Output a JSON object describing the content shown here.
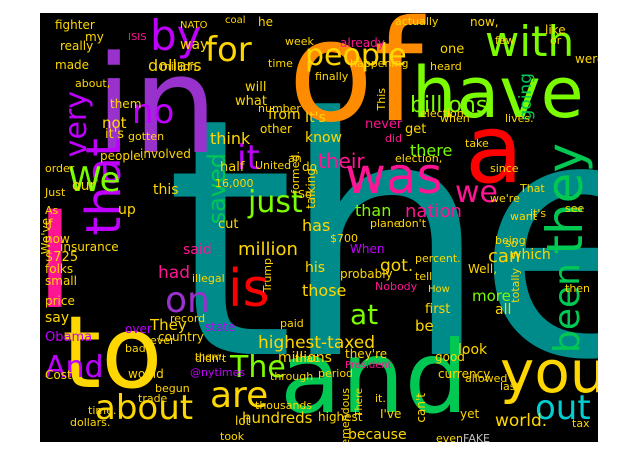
{
  "background": "#000000",
  "colors": {
    "teal": "#008b8b",
    "orange": "#ff8c00",
    "purple": "#9932cc",
    "red": "#ff0000",
    "pink": "#ff1493",
    "lime": "#7cfc00",
    "green": "#00c853",
    "yellow": "#ffd700",
    "violet": "#c000ff",
    "cyan": "#00ced1",
    "grey": "#c0c0c0",
    "brown": "#b8860b"
  },
  "words": [
    {
      "text": "the",
      "color": "teal"
    },
    {
      "text": "of",
      "color": "orange"
    },
    {
      "text": "in",
      "color": "purple"
    },
    {
      "text": "and",
      "color": "green"
    },
    {
      "text": "to",
      "color": "yellow"
    },
    {
      "text": "I",
      "color": "pink"
    },
    {
      "text": "a",
      "color": "red"
    },
    {
      "text": "have",
      "color": "lime"
    },
    {
      "text": "was",
      "color": "pink"
    },
    {
      "text": "is",
      "color": "red"
    },
    {
      "text": "you",
      "color": "yellow"
    },
    {
      "text": "that",
      "color": "violet"
    },
    {
      "text": "they",
      "color": "green"
    },
    {
      "text": "with",
      "color": "lime"
    },
    {
      "text": "for",
      "color": "yellow"
    },
    {
      "text": "by",
      "color": "violet"
    },
    {
      "text": "people",
      "color": "yellow"
    },
    {
      "text": "We",
      "color": "lime"
    },
    {
      "text": "we",
      "color": "pink"
    },
    {
      "text": "about",
      "color": "yellow"
    },
    {
      "text": "are",
      "color": "yellow"
    },
    {
      "text": "out",
      "color": "cyan"
    },
    {
      "text": "The",
      "color": "lime"
    },
    {
      "text": "been",
      "color": "green"
    },
    {
      "text": "on",
      "color": "purple"
    },
    {
      "text": "And",
      "color": "violet"
    },
    {
      "text": "just",
      "color": "lime"
    },
    {
      "text": "it",
      "color": "violet"
    },
    {
      "text": "no",
      "color": "violet"
    },
    {
      "text": "very",
      "color": "violet"
    },
    {
      "text": "saved",
      "color": "green"
    },
    {
      "text": "billions",
      "color": "lime"
    },
    {
      "text": "highest-taxed",
      "color": "yellow"
    },
    {
      "text": "million",
      "color": "yellow"
    },
    {
      "text": "at",
      "color": "lime"
    },
    {
      "text": "nation",
      "color": "pink"
    },
    {
      "text": "their",
      "color": "pink"
    },
    {
      "text": "world.",
      "color": "yellow"
    },
    {
      "text": "because",
      "color": "yellow"
    },
    {
      "text": "hundreds",
      "color": "yellow"
    },
    {
      "text": "got.",
      "color": "yellow"
    },
    {
      "text": "more",
      "color": "lime"
    },
    {
      "text": "had",
      "color": "pink"
    },
    {
      "text": "can",
      "color": "yellow"
    },
    {
      "text": "dollars",
      "color": "yellow"
    },
    {
      "text": "think",
      "color": "yellow"
    },
    {
      "text": "not",
      "color": "yellow"
    },
    {
      "text": "going",
      "color": "green"
    },
    {
      "text": "those",
      "color": "yellow"
    },
    {
      "text": "which",
      "color": "yellow"
    },
    {
      "text": "They",
      "color": "yellow"
    },
    {
      "text": "there",
      "color": "lime"
    },
    {
      "text": "than",
      "color": "lime"
    },
    {
      "text": "has",
      "color": "yellow"
    },
    {
      "text": "said",
      "color": "pink"
    },
    {
      "text": "millions",
      "color": "yellow"
    },
    {
      "text": "from",
      "color": "yellow"
    },
    {
      "text": "way",
      "color": "yellow"
    },
    {
      "text": "this",
      "color": "yellow"
    },
    {
      "text": "know",
      "color": "yellow"
    },
    {
      "text": "It's",
      "color": "yellow"
    },
    {
      "text": "say",
      "color": "yellow"
    },
    {
      "text": "look",
      "color": "yellow"
    },
    {
      "text": "up",
      "color": "yellow"
    },
    {
      "text": "our",
      "color": "yellow"
    },
    {
      "text": "really",
      "color": "yellow"
    },
    {
      "text": "never",
      "color": "pink"
    },
    {
      "text": "one",
      "color": "yellow"
    },
    {
      "text": "get",
      "color": "yellow"
    },
    {
      "text": "be",
      "color": "yellow"
    },
    {
      "text": "first",
      "color": "yellow"
    },
    {
      "text": "all",
      "color": "yellow"
    },
    {
      "text": "what",
      "color": "yellow"
    },
    {
      "text": "cut",
      "color": "yellow"
    },
    {
      "text": "half",
      "color": "yellow"
    },
    {
      "text": "his",
      "color": "yellow"
    },
    {
      "text": "will",
      "color": "yellow"
    },
    {
      "text": "my",
      "color": "yellow"
    },
    {
      "text": "fighter",
      "color": "yellow"
    },
    {
      "text": "he",
      "color": "yellow"
    },
    {
      "text": "like",
      "color": "yellow"
    },
    {
      "text": "were",
      "color": "yellow"
    },
    {
      "text": "now,",
      "color": "yellow"
    },
    {
      "text": "heard",
      "color": "yellow"
    },
    {
      "text": "already",
      "color": "pink"
    },
    {
      "text": "Obama",
      "color": "violet"
    },
    {
      "text": "over",
      "color": "violet"
    },
    {
      "text": "country",
      "color": "yellow"
    },
    {
      "text": "price",
      "color": "yellow"
    },
    {
      "text": "record",
      "color": "yellow"
    },
    {
      "text": "small",
      "color": "yellow"
    },
    {
      "text": "insurance",
      "color": "yellow"
    },
    {
      "text": "if",
      "color": "yellow"
    },
    {
      "text": "now",
      "color": "yellow"
    },
    {
      "text": "$725",
      "color": "yellow"
    },
    {
      "text": "folks",
      "color": "yellow"
    },
    {
      "text": "Just",
      "color": "yellow"
    },
    {
      "text": "people.",
      "color": "yellow"
    },
    {
      "text": "involved",
      "color": "yellow"
    },
    {
      "text": "order",
      "color": "yellow"
    },
    {
      "text": "it's",
      "color": "yellow"
    },
    {
      "text": "them",
      "color": "yellow"
    },
    {
      "text": "gotten",
      "color": "yellow"
    },
    {
      "text": "other",
      "color": "yellow"
    },
    {
      "text": "number",
      "color": "yellow"
    },
    {
      "text": "When",
      "color": "violet"
    },
    {
      "text": "would",
      "color": "yellow"
    },
    {
      "text": "trade",
      "color": "yellow"
    },
    {
      "text": "took",
      "color": "yellow"
    },
    {
      "text": "lot",
      "color": "yellow"
    },
    {
      "text": "highest",
      "color": "yellow"
    },
    {
      "text": "period",
      "color": "yellow"
    },
    {
      "text": "thousands",
      "color": "yellow"
    },
    {
      "text": "state",
      "color": "violet"
    },
    {
      "text": "begun",
      "color": "yellow"
    },
    {
      "text": "bad",
      "color": "yellow"
    },
    {
      "text": "ever",
      "color": "yellow"
    },
    {
      "text": "didn't",
      "color": "yellow"
    },
    {
      "text": "illegal",
      "color": "yellow"
    },
    {
      "text": "paid",
      "color": "yellow"
    },
    {
      "text": "that.",
      "color": "yellow"
    },
    {
      "text": "they're",
      "color": "yellow"
    },
    {
      "text": "I've",
      "color": "yellow"
    },
    {
      "text": "it.",
      "color": "yellow"
    },
    {
      "text": "can't",
      "color": "yellow"
    },
    {
      "text": "currency",
      "color": "yellow"
    },
    {
      "text": "allowed",
      "color": "yellow"
    },
    {
      "text": "good",
      "color": "yellow"
    },
    {
      "text": "yet",
      "color": "yellow"
    },
    {
      "text": "tax",
      "color": "yellow"
    },
    {
      "text": "see",
      "color": "yellow"
    },
    {
      "text": "then",
      "color": "yellow"
    },
    {
      "text": "so",
      "color": "yellow"
    },
    {
      "text": "want",
      "color": "yellow"
    },
    {
      "text": "totally",
      "color": "yellow"
    },
    {
      "text": "we're",
      "color": "yellow"
    },
    {
      "text": "That",
      "color": "yellow"
    },
    {
      "text": "take",
      "color": "yellow"
    },
    {
      "text": "election,",
      "color": "yellow"
    },
    {
      "text": "did",
      "color": "pink"
    },
    {
      "text": "do",
      "color": "yellow"
    },
    {
      "text": "an",
      "color": "yellow"
    },
    {
      "text": "when",
      "color": "yellow"
    },
    {
      "text": "since",
      "color": "yellow"
    },
    {
      "text": "don't",
      "color": "yellow"
    },
    {
      "text": "tell",
      "color": "yellow"
    },
    {
      "text": "percent.",
      "color": "yellow"
    },
    {
      "text": "Nobody",
      "color": "pink"
    },
    {
      "text": "probably",
      "color": "yellow"
    },
    {
      "text": "Trump",
      "color": "yellow"
    },
    {
      "text": "talking",
      "color": "yellow"
    },
    {
      "text": "formed.",
      "color": "yellow"
    },
    {
      "text": "plane",
      "color": "yellow"
    },
    {
      "text": "even",
      "color": "yellow"
    },
    {
      "text": "FAKE",
      "color": "grey"
    },
    {
      "text": "@nytimes",
      "color": "violet"
    },
    {
      "text": "Cost",
      "color": "yellow"
    },
    {
      "text": "We've",
      "color": "yellow"
    },
    {
      "text": "As",
      "color": "yellow"
    },
    {
      "text": "United",
      "color": "yellow"
    },
    {
      "text": "16,000",
      "color": "yellow"
    },
    {
      "text": "million.",
      "color": "yellow"
    },
    {
      "text": "made",
      "color": "yellow"
    },
    {
      "text": "time",
      "color": "yellow"
    },
    {
      "text": "finally",
      "color": "yellow"
    },
    {
      "text": "This",
      "color": "yellow"
    },
    {
      "text": "happening",
      "color": "yellow"
    },
    {
      "text": "election",
      "color": "yellow"
    },
    {
      "text": "lives.",
      "color": "yellow"
    },
    {
      "text": "few",
      "color": "yellow"
    },
    {
      "text": "or",
      "color": "yellow"
    },
    {
      "text": "actually",
      "color": "yellow"
    },
    {
      "text": "week",
      "color": "yellow"
    },
    {
      "text": "NATO",
      "color": "yellow"
    },
    {
      "text": "coal",
      "color": "yellow"
    },
    {
      "text": "ISIS",
      "color": "pink"
    },
    {
      "text": "Well,",
      "color": "yellow"
    },
    {
      "text": "$700",
      "color": "yellow"
    },
    {
      "text": "So",
      "color": "yellow"
    },
    {
      "text": "it's",
      "color": "yellow"
    },
    {
      "text": "about,",
      "color": "yellow"
    },
    {
      "text": "being",
      "color": "yellow"
    },
    {
      "text": "How",
      "color": "yellow"
    },
    {
      "text": "last",
      "color": "yellow"
    },
    {
      "text": "them.",
      "color": "yellow"
    },
    {
      "text": "through",
      "color": "yellow"
    },
    {
      "text": "President",
      "color": "pink"
    },
    {
      "text": "tremendous",
      "color": "yellow"
    },
    {
      "text": "There",
      "color": "yellow"
    },
    {
      "text": "time.",
      "color": "yellow"
    },
    {
      "text": "dollars.",
      "color": "yellow"
    }
  ]
}
